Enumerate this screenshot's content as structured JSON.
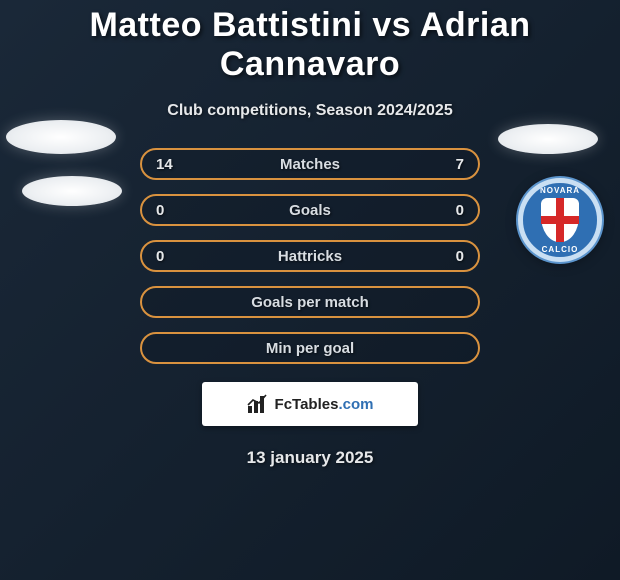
{
  "title": "Matteo Battistini vs Adrian Cannavaro",
  "subtitle": "Club competitions, Season 2024/2025",
  "date": "13 january 2025",
  "colors": {
    "row_border": "#d9923f",
    "text": "#e6e8ea",
    "background_from": "#1a2838",
    "background_to": "#0f1a26",
    "crest_bg": "#2f6fb3",
    "crest_border": "#c9dff3",
    "crest_cross": "#d62828",
    "logo_accent": "#2f6fb3"
  },
  "crest": {
    "top_text": "NOVARA",
    "bottom_text": "CALCIO"
  },
  "rows": [
    {
      "left": "14",
      "label": "Matches",
      "right": "7"
    },
    {
      "left": "0",
      "label": "Goals",
      "right": "0"
    },
    {
      "left": "0",
      "label": "Hattricks",
      "right": "0"
    },
    {
      "left": "",
      "label": "Goals per match",
      "right": ""
    },
    {
      "left": "",
      "label": "Min per goal",
      "right": ""
    }
  ],
  "logo": {
    "text_left": "FcTables",
    "text_right": ".com"
  }
}
